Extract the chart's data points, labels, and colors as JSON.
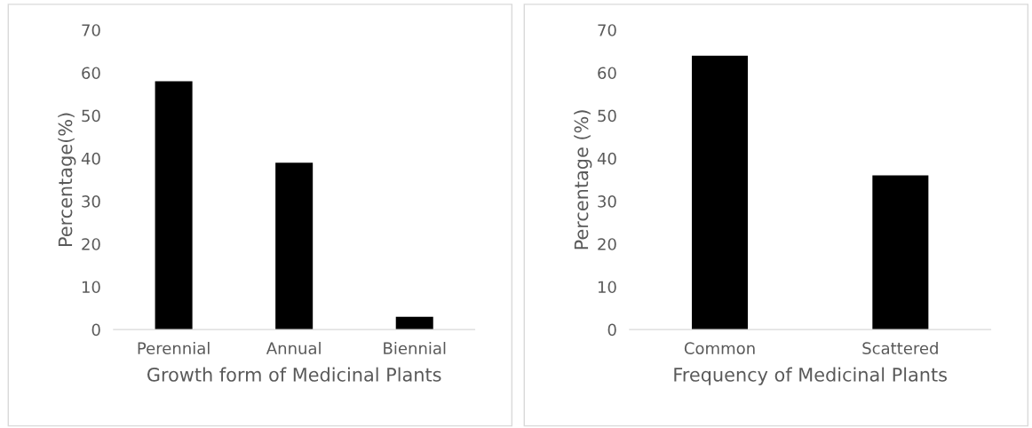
{
  "chart_data": [
    {
      "type": "bar",
      "categories": [
        "Perennial",
        "Annual",
        "Biennial"
      ],
      "values": [
        58,
        39,
        3
      ],
      "color": "#000000",
      "xlabel": "Growth form of Medicinal Plants",
      "ylabel": "Percentage(%)",
      "ylim": [
        0,
        70
      ],
      "yticks": [
        0,
        10,
        20,
        30,
        40,
        50,
        60,
        70
      ],
      "grid": false
    },
    {
      "type": "bar",
      "categories": [
        "Common",
        "Scattered"
      ],
      "values": [
        64,
        36
      ],
      "color": "#000000",
      "xlabel": "Frequency of Medicinal Plants",
      "ylabel": "Percentage (%)",
      "ylim": [
        0,
        70
      ],
      "yticks": [
        0,
        10,
        20,
        30,
        40,
        50,
        60,
        70
      ],
      "grid": false
    }
  ]
}
